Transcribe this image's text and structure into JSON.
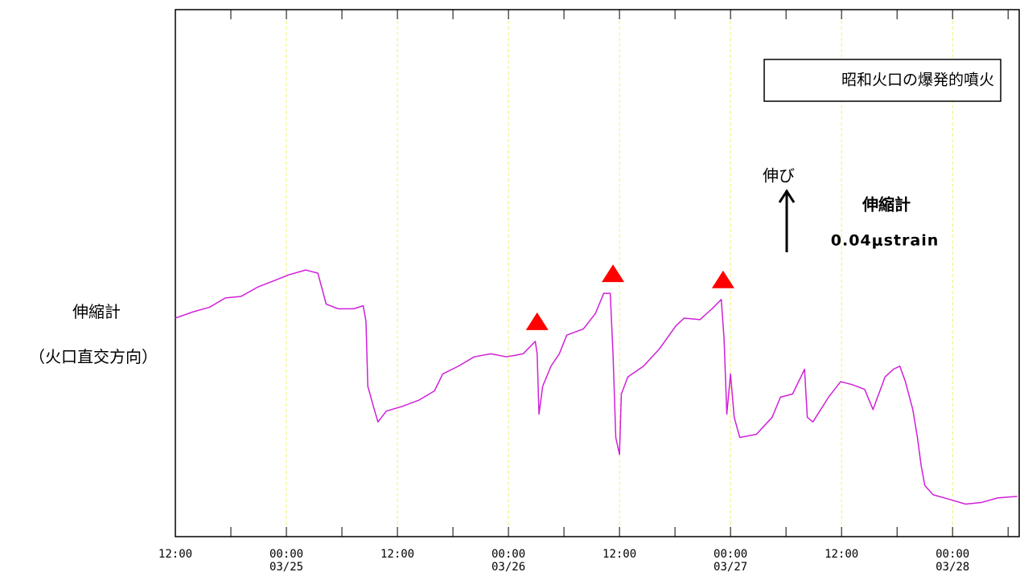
{
  "chart_data": {
    "type": "line",
    "y_label_lines": [
      "伸縮計",
      "（火口直交方向）"
    ],
    "legend_box": "昭和火口の爆発的噴火",
    "scale_bar": {
      "direction": "伸び",
      "title": "伸縮計",
      "value": 0.04,
      "value_label": "0.04μstrain"
    },
    "xlim": [
      0,
      91.2
    ],
    "ylim": [
      0,
      0.34
    ],
    "xticks": [
      {
        "value": 0,
        "label": "12:00"
      },
      {
        "value": 12,
        "label": "00:00\n03/25"
      },
      {
        "value": 24,
        "label": "12:00"
      },
      {
        "value": 36,
        "label": "00:00\n03/26"
      },
      {
        "value": 48,
        "label": "12:00"
      },
      {
        "value": 60,
        "label": "00:00\n03/27"
      },
      {
        "value": 72,
        "label": "12:00"
      },
      {
        "value": 84,
        "label": "00:00\n03/28"
      }
    ],
    "xminorticks": [
      6,
      18,
      30,
      42,
      54,
      66,
      78,
      90
    ],
    "grid": true,
    "grid_color": "#f0f070",
    "series": [
      {
        "color": "#d020d8",
        "x": [
          0,
          1.9,
          3.7,
          5.4,
          7.1,
          8.9,
          10.6,
          12.3,
          14.1,
          15.4,
          16.3,
          17.6,
          19.3,
          20.3,
          20.6,
          20.8,
          21.5,
          21.9,
          22.8,
          24.5,
          26.3,
          28.0,
          28.9,
          30.6,
          32.3,
          34.1,
          35.8,
          37.6,
          38.9,
          39.1,
          39.3,
          39.7,
          40.6,
          41.5,
          42.3,
          44.1,
          45.4,
          46.3,
          47.0,
          47.3,
          47.6,
          48.0,
          48.2,
          48.9,
          50.6,
          52.3,
          54.1,
          55.0,
          56.7,
          58.0,
          59.0,
          59.3,
          59.6,
          60.0,
          60.4,
          61.0,
          62.8,
          64.5,
          65.4,
          66.7,
          67.6,
          68.0,
          68.3,
          68.9,
          70.6,
          71.9,
          73.2,
          74.5,
          75.4,
          76.7,
          77.6,
          78.3,
          78.9,
          79.7,
          80.2,
          80.6,
          81.0,
          81.9,
          83.7,
          85.4,
          87.1,
          88.9,
          91.0
        ],
        "values": [
          0.141,
          0.145,
          0.148,
          0.154,
          0.155,
          0.161,
          0.165,
          0.169,
          0.172,
          0.17,
          0.15,
          0.147,
          0.147,
          0.149,
          0.139,
          0.097,
          0.082,
          0.074,
          0.081,
          0.084,
          0.088,
          0.094,
          0.105,
          0.11,
          0.116,
          0.118,
          0.116,
          0.118,
          0.126,
          0.118,
          0.079,
          0.097,
          0.11,
          0.118,
          0.13,
          0.134,
          0.144,
          0.157,
          0.157,
          0.118,
          0.064,
          0.053,
          0.092,
          0.103,
          0.11,
          0.121,
          0.136,
          0.141,
          0.14,
          0.147,
          0.153,
          0.128,
          0.079,
          0.105,
          0.077,
          0.064,
          0.066,
          0.077,
          0.09,
          0.092,
          0.103,
          0.108,
          0.077,
          0.074,
          0.09,
          0.1,
          0.098,
          0.095,
          0.082,
          0.103,
          0.108,
          0.11,
          0.1,
          0.082,
          0.064,
          0.046,
          0.033,
          0.027,
          0.024,
          0.021,
          0.022,
          0.025,
          0.026
        ]
      }
    ],
    "events": {
      "color": "#ff0000",
      "x": [
        39.1,
        47.3,
        59.2
      ]
    }
  }
}
